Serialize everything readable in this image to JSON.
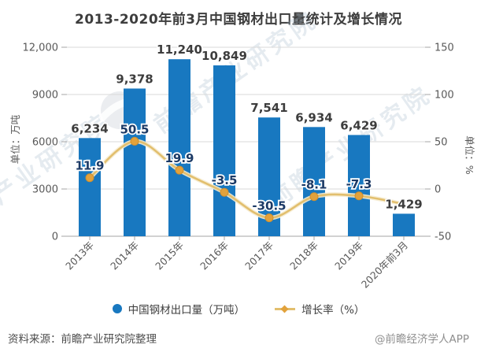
{
  "title": "2013-2020年前3月中国钢材出口量统计及增长情况",
  "chart_data": {
    "type": "bar",
    "subtype": "bar+line combo",
    "categories": [
      "2013年",
      "2014年",
      "2015年",
      "2016年",
      "2017年",
      "2018年",
      "2019年",
      "2020年前3月"
    ],
    "series": [
      {
        "name": "中国钢材出口量（万吨）",
        "type": "bar",
        "axis": "left",
        "values": [
          6234,
          9378,
          11240,
          10849,
          7541,
          6934,
          6429,
          1429
        ],
        "labels": [
          "6,234",
          "9,378",
          "11,240",
          "10,849",
          "7,541",
          "6,934",
          "6,429",
          "1,429"
        ],
        "color": "#1878c0"
      },
      {
        "name": "增长率（%）",
        "type": "line",
        "axis": "right",
        "values": [
          11.9,
          50.5,
          19.9,
          -3.5,
          -30.5,
          -8.1,
          -7.3,
          -16
        ],
        "labels": [
          "11.9",
          "50.5",
          "19.9",
          "-3.5",
          "-30.5",
          "-8.1",
          "-7.3",
          ""
        ],
        "color": "#e2bf6e",
        "marker_color": "#e2a23c"
      }
    ],
    "left_axis": {
      "title": "单位：万吨",
      "tick_labels": [
        "12,000",
        "9000",
        "6000",
        "3000",
        "0"
      ],
      "range": [
        0,
        12000
      ]
    },
    "right_axis": {
      "title": "单位：%",
      "tick_labels": [
        "150",
        "100",
        "50",
        "0",
        "-50"
      ],
      "range": [
        -50,
        150
      ]
    },
    "grid": "horizontal",
    "legend_position": "bottom"
  },
  "legend": {
    "items": [
      {
        "label": "中国钢材出口量（万吨）",
        "marker": "circle",
        "color": "#1878c0"
      },
      {
        "label": "增长率（%）",
        "marker": "line-diamond",
        "line_color": "#e2bf6e",
        "color": "#e2a23c"
      }
    ]
  },
  "footer": {
    "source": "资料来源：前瞻产业研究院整理",
    "credit": "@前瞻经济学人APP"
  },
  "watermark": {
    "text": "前瞻产业研究院",
    "color": "#9db4c6"
  },
  "colors": {
    "bar": "#1878c0",
    "line": "#e2bf6e",
    "line_marker": "#e2a23c",
    "bar_label": "#3d3d3d",
    "line_label": "#1c3a66",
    "axis_text": "#595959",
    "grid": "#d9d9d9",
    "baseline": "#a6a6a6",
    "title_text": "#3d3d3d"
  }
}
